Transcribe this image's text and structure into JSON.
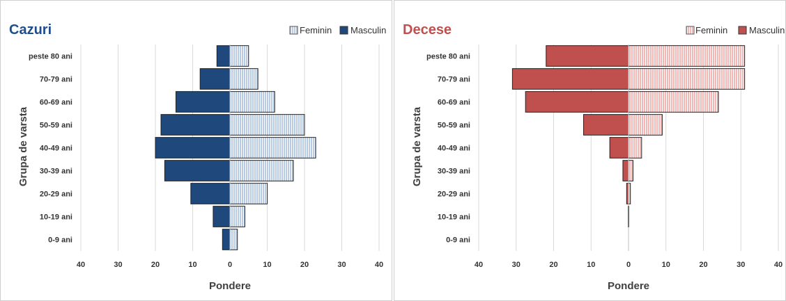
{
  "chart_data": [
    {
      "type": "bar",
      "title": "Cazuri",
      "xlabel": "Pondere",
      "ylabel": "Grupa de varsta",
      "categories": [
        "0-9 ani",
        "10-19 ani",
        "20-29 ani",
        "30-39 ani",
        "40-49 ani",
        "50-59 ani",
        "60-69 ani",
        "70-79 ani",
        "peste 80 ani"
      ],
      "series": [
        {
          "name": "Feminin",
          "values": [
            2,
            4,
            10,
            17,
            23,
            20,
            12,
            7.5,
            5
          ]
        },
        {
          "name": "Masculin",
          "values": [
            2,
            4.5,
            10.5,
            17.5,
            20,
            18.5,
            14.5,
            8,
            3.5
          ]
        }
      ],
      "x_ticks": [
        "40",
        "30",
        "20",
        "10",
        "0",
        "10",
        "20",
        "30",
        "40"
      ],
      "xlim": [
        -40,
        40
      ],
      "grid": true,
      "legend_position": "top-right",
      "colors": {
        "title": "#1f4e8c",
        "feminin": "#b8cbe4",
        "feminin_stripe": "#ffffff",
        "masculin": "#1f497d"
      }
    },
    {
      "type": "bar",
      "title": "Decese",
      "xlabel": "Pondere",
      "ylabel": "Grupa de varsta",
      "categories": [
        "0-9 ani",
        "10-19 ani",
        "20-29 ani",
        "30-39 ani",
        "40-49 ani",
        "50-59 ani",
        "60-69 ani",
        "70-79 ani",
        "peste 80 ani"
      ],
      "series": [
        {
          "name": "Feminin",
          "values": [
            0,
            0.1,
            0.5,
            1.2,
            3.5,
            9,
            24,
            31,
            31
          ]
        },
        {
          "name": "Masculin",
          "values": [
            0,
            0.1,
            0.5,
            1.5,
            5,
            12,
            27.5,
            31,
            22
          ]
        }
      ],
      "x_ticks": [
        "40",
        "30",
        "20",
        "10",
        "0",
        "10",
        "20",
        "30",
        "40"
      ],
      "xlim": [
        -40,
        40
      ],
      "grid": true,
      "legend_position": "top-right",
      "colors": {
        "title": "#c0504d",
        "feminin": "#f2b8b6",
        "feminin_stripe": "#ffffff",
        "masculin": "#c0504d"
      }
    }
  ]
}
